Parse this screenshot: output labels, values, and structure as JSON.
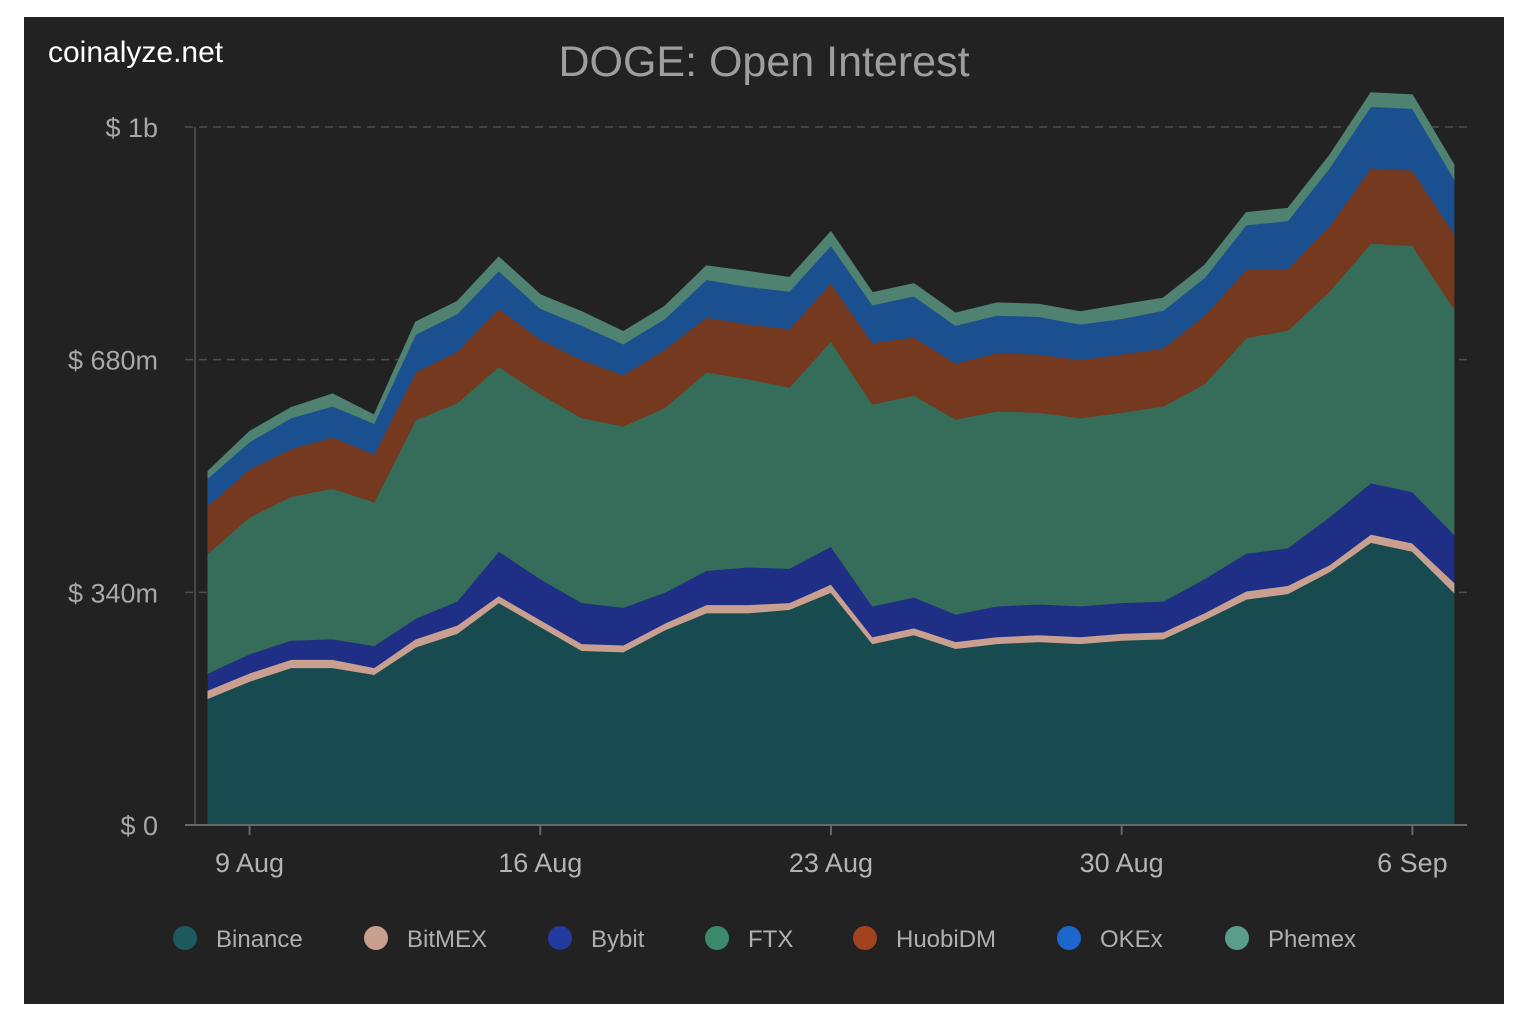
{
  "brand": "coinalyze.net",
  "chart_data": {
    "type": "area",
    "stacked": true,
    "title": "DOGE: Open Interest",
    "xlabel": "",
    "ylabel": "",
    "ylim": [
      0,
      1020
    ],
    "y_unit": "millions USD",
    "y_ticks": [
      {
        "value": 0,
        "label": "$ 0"
      },
      {
        "value": 340,
        "label": "$ 340m"
      },
      {
        "value": 680,
        "label": "$ 680m"
      },
      {
        "value": 1020,
        "label": "$ 1b"
      }
    ],
    "x_ticks": [
      {
        "index": 1,
        "label": "9 Aug"
      },
      {
        "index": 8,
        "label": "16 Aug"
      },
      {
        "index": 15,
        "label": "23 Aug"
      },
      {
        "index": 22,
        "label": "30 Aug"
      },
      {
        "index": 29,
        "label": "6 Sep"
      }
    ],
    "categories": [
      "8 Aug",
      "9 Aug",
      "10 Aug",
      "11 Aug",
      "12 Aug",
      "13 Aug",
      "14 Aug",
      "15 Aug",
      "16 Aug",
      "17 Aug",
      "18 Aug",
      "19 Aug",
      "20 Aug",
      "21 Aug",
      "22 Aug",
      "23 Aug",
      "24 Aug",
      "25 Aug",
      "26 Aug",
      "27 Aug",
      "28 Aug",
      "29 Aug",
      "30 Aug",
      "31 Aug",
      "1 Sep",
      "2 Sep",
      "3 Sep",
      "4 Sep",
      "5 Sep",
      "6 Sep",
      "7 Sep"
    ],
    "legend_position": "bottom",
    "grid": "horizontal dashed",
    "series": [
      {
        "name": "Binance",
        "color": "#184b50",
        "values": [
          185,
          210,
          230,
          230,
          220,
          260,
          280,
          325,
          290,
          255,
          253,
          285,
          310,
          310,
          315,
          340,
          265,
          278,
          258,
          265,
          268,
          265,
          270,
          272,
          300,
          330,
          338,
          370,
          413,
          400,
          340
        ]
      },
      {
        "name": "BitMEX",
        "color": "#c9a090",
        "values": [
          12,
          12,
          12,
          12,
          10,
          12,
          12,
          10,
          10,
          10,
          10,
          10,
          12,
          12,
          10,
          12,
          10,
          10,
          10,
          10,
          10,
          10,
          10,
          10,
          10,
          12,
          12,
          10,
          12,
          12,
          15
        ]
      },
      {
        "name": "Bybit",
        "color": "#1f2f85",
        "values": [
          25,
          28,
          28,
          30,
          32,
          30,
          35,
          65,
          60,
          60,
          55,
          45,
          50,
          55,
          50,
          55,
          45,
          45,
          40,
          45,
          45,
          45,
          45,
          45,
          50,
          55,
          55,
          70,
          75,
          75,
          70
        ]
      },
      {
        "name": "FTX",
        "color": "#356c5a",
        "values": [
          175,
          200,
          210,
          220,
          210,
          290,
          290,
          270,
          270,
          270,
          265,
          270,
          290,
          275,
          265,
          300,
          295,
          295,
          285,
          285,
          280,
          275,
          278,
          285,
          285,
          315,
          318,
          330,
          350,
          360,
          330
        ]
      },
      {
        "name": "HuobiDM",
        "color": "#74391e",
        "values": [
          70,
          70,
          70,
          75,
          70,
          70,
          75,
          85,
          80,
          85,
          75,
          85,
          80,
          80,
          85,
          85,
          90,
          85,
          82,
          85,
          85,
          85,
          85,
          85,
          100,
          100,
          90,
          95,
          110,
          110,
          110
        ]
      },
      {
        "name": "OKEx",
        "color": "#1a4f90",
        "values": [
          40,
          40,
          45,
          45,
          45,
          55,
          55,
          55,
          45,
          50,
          45,
          45,
          55,
          55,
          55,
          55,
          55,
          60,
          55,
          55,
          55,
          52,
          52,
          55,
          55,
          65,
          70,
          85,
          90,
          90,
          80
        ]
      },
      {
        "name": "Phemex",
        "color": "#4f8270",
        "values": [
          10,
          15,
          15,
          18,
          12,
          18,
          18,
          20,
          20,
          20,
          18,
          18,
          20,
          22,
          20,
          20,
          18,
          18,
          18,
          18,
          18,
          18,
          20,
          18,
          18,
          18,
          18,
          18,
          20,
          20,
          20
        ]
      }
    ]
  }
}
